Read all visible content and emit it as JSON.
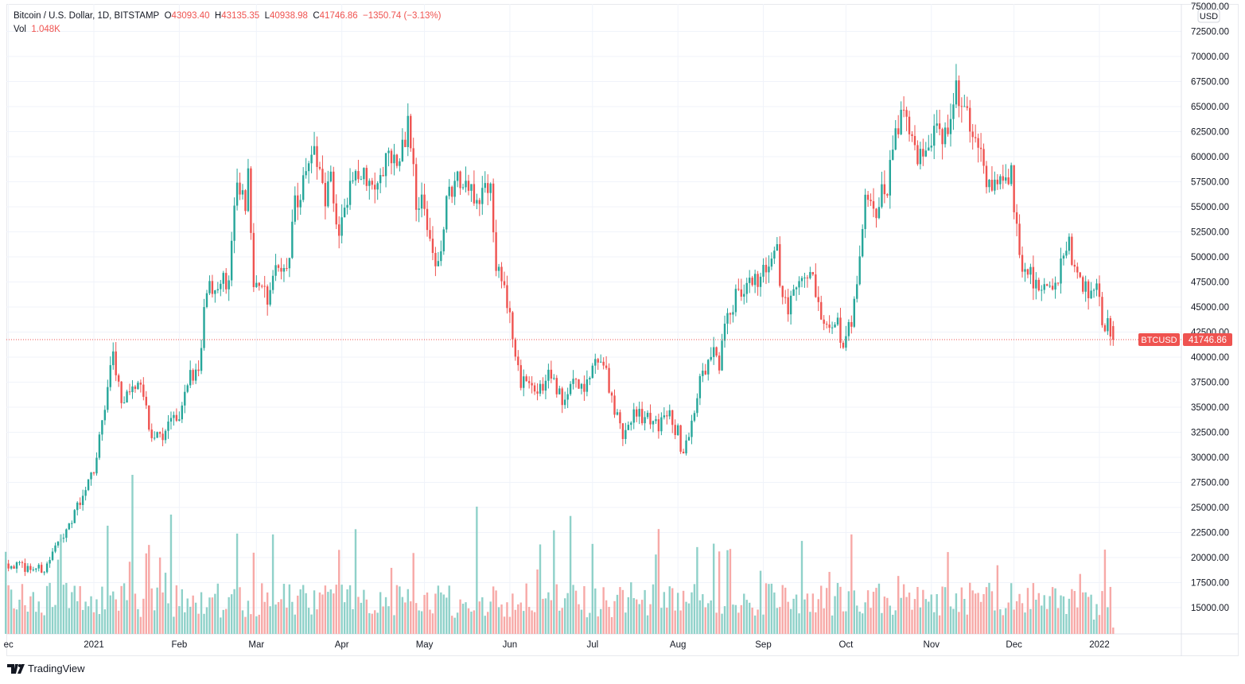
{
  "legend": {
    "symbol": "Bitcoin / U.S. Dollar, 1D, BITSTAMP",
    "open_label": "O",
    "open": "43093.40",
    "high_label": "H",
    "high": "43135.35",
    "low_label": "L",
    "low": "40938.98",
    "close_label": "C",
    "close": "41746.86",
    "change": "−1350.74 (−3.13%)",
    "vol_label": "Vol",
    "vol": "1.048K"
  },
  "price_axis": {
    "currency": "USD",
    "ticks": [
      "75000.00",
      "72500.00",
      "70000.00",
      "67500.00",
      "65000.00",
      "62500.00",
      "60000.00",
      "57500.00",
      "55000.00",
      "52500.00",
      "50000.00",
      "47500.00",
      "45000.00",
      "42500.00",
      "40000.00",
      "37500.00",
      "35000.00",
      "32500.00",
      "30000.00",
      "27500.00",
      "25000.00",
      "22500.00",
      "20000.00",
      "17500.00",
      "15000.00"
    ],
    "last_symbol": "BTCUSD",
    "last_price": "41746.86"
  },
  "brand": "TradingView",
  "colors": {
    "up": "#26a69a",
    "down": "#ef5350",
    "vol_up": "#8fd1c9",
    "vol_down": "#f7a9a7"
  },
  "chart_data": {
    "type": "candlestick",
    "title": "Bitcoin / U.S. Dollar, 1D, BITSTAMP",
    "x_ticks": [
      {
        "label": "ec",
        "day": -31
      },
      {
        "label": "2021",
        "day": 0
      },
      {
        "label": "Feb",
        "day": 31
      },
      {
        "label": "Mar",
        "day": 59
      },
      {
        "label": "Apr",
        "day": 90
      },
      {
        "label": "May",
        "day": 120
      },
      {
        "label": "Jun",
        "day": 151
      },
      {
        "label": "Jul",
        "day": 181
      },
      {
        "label": "Aug",
        "day": 212
      },
      {
        "label": "Sep",
        "day": 243
      },
      {
        "label": "Oct",
        "day": 273
      },
      {
        "label": "Nov",
        "day": 304
      },
      {
        "label": "Dec",
        "day": 334
      },
      {
        "label": "2022",
        "day": 365
      }
    ],
    "ylim": [
      12000,
      75000
    ],
    "close_anchors_day_price": [
      [
        -32,
        19400
      ],
      [
        -25,
        19000
      ],
      [
        -18,
        18800
      ],
      [
        -10,
        23000
      ],
      [
        -3,
        26500
      ],
      [
        0,
        29000
      ],
      [
        3,
        33000
      ],
      [
        7,
        40500
      ],
      [
        10,
        35000
      ],
      [
        14,
        37000
      ],
      [
        18,
        36500
      ],
      [
        21,
        32000
      ],
      [
        26,
        32500
      ],
      [
        28,
        34000
      ],
      [
        31,
        33500
      ],
      [
        35,
        38000
      ],
      [
        38,
        39500
      ],
      [
        41,
        46500
      ],
      [
        45,
        47500
      ],
      [
        49,
        48000
      ],
      [
        52,
        57000
      ],
      [
        55,
        55000
      ],
      [
        56,
        57500
      ],
      [
        58,
        48000
      ],
      [
        61,
        47000
      ],
      [
        63,
        45000
      ],
      [
        66,
        50000
      ],
      [
        70,
        48500
      ],
      [
        73,
        55000
      ],
      [
        77,
        57500
      ],
      [
        79,
        61000
      ],
      [
        84,
        55000
      ],
      [
        86,
        58000
      ],
      [
        89,
        52000
      ],
      [
        92,
        56000
      ],
      [
        95,
        58500
      ],
      [
        98,
        59000
      ],
      [
        101,
        57000
      ],
      [
        104,
        58800
      ],
      [
        108,
        60000
      ],
      [
        111,
        59000
      ],
      [
        114,
        63500
      ],
      [
        117,
        56000
      ],
      [
        121,
        54000
      ],
      [
        123,
        50500
      ],
      [
        125,
        49000
      ],
      [
        128,
        55000
      ],
      [
        132,
        57500
      ],
      [
        134,
        57000
      ],
      [
        137,
        56000
      ],
      [
        141,
        56500
      ],
      [
        144,
        58000
      ],
      [
        146,
        49500
      ],
      [
        149,
        47000
      ],
      [
        151,
        43500
      ],
      [
        153,
        40000
      ],
      [
        155,
        37000
      ],
      [
        157,
        38500
      ],
      [
        160,
        37000
      ],
      [
        165,
        38000
      ],
      [
        170,
        35500
      ],
      [
        175,
        37500
      ],
      [
        178,
        36000
      ],
      [
        181,
        39000
      ],
      [
        184,
        40500
      ],
      [
        188,
        35500
      ],
      [
        192,
        32000
      ],
      [
        196,
        34500
      ],
      [
        200,
        34000
      ],
      [
        205,
        33000
      ],
      [
        208,
        34500
      ],
      [
        212,
        32500
      ],
      [
        214,
        30000
      ],
      [
        217,
        33000
      ],
      [
        220,
        37500
      ],
      [
        224,
        40500
      ],
      [
        227,
        39500
      ],
      [
        230,
        44500
      ],
      [
        233,
        46000
      ],
      [
        238,
        47500
      ],
      [
        242,
        48000
      ],
      [
        244,
        49000
      ],
      [
        248,
        52500
      ],
      [
        249,
        46500
      ],
      [
        253,
        45000
      ],
      [
        257,
        48000
      ],
      [
        261,
        47500
      ],
      [
        264,
        43000
      ],
      [
        267,
        42000
      ],
      [
        270,
        43500
      ],
      [
        272,
        41000
      ],
      [
        275,
        43500
      ],
      [
        277,
        47500
      ],
      [
        280,
        55000
      ],
      [
        284,
        54500
      ],
      [
        288,
        57500
      ],
      [
        291,
        62000
      ],
      [
        294,
        65500
      ],
      [
        298,
        61000
      ],
      [
        302,
        60000
      ],
      [
        306,
        62500
      ],
      [
        310,
        63000
      ],
      [
        313,
        67500
      ],
      [
        316,
        64000
      ],
      [
        318,
        63000
      ],
      [
        321,
        60000
      ],
      [
        325,
        57500
      ],
      [
        330,
        57000
      ],
      [
        333,
        58000
      ],
      [
        335,
        53500
      ],
      [
        337,
        49000
      ],
      [
        340,
        48500
      ],
      [
        343,
        47000
      ],
      [
        347,
        46500
      ],
      [
        350,
        48000
      ],
      [
        354,
        50800
      ],
      [
        357,
        47800
      ],
      [
        361,
        46500
      ],
      [
        364,
        47000
      ],
      [
        366,
        43500
      ],
      [
        369,
        43100
      ],
      [
        370,
        41746.86
      ]
    ]
  }
}
